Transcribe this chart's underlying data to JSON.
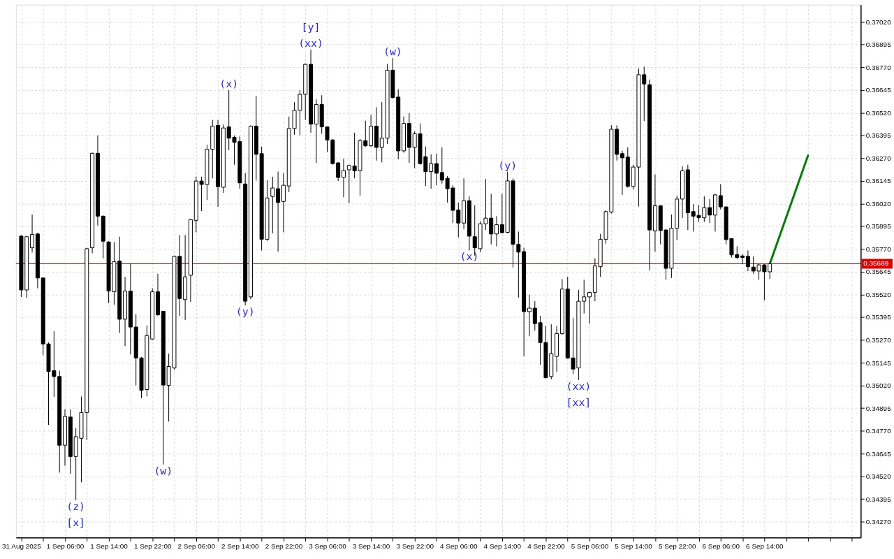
{
  "chart_data": {
    "type": "candlestick",
    "x": [
      "2025-08-31T22:00",
      "2025-08-31T23:00",
      "2025-09-01T00:00",
      "2025-09-01T01:00",
      "2025-09-01T02:00",
      "2025-09-01T03:00",
      "2025-09-01T04:00",
      "2025-09-01T05:00",
      "2025-09-01T06:00",
      "2025-09-01T07:00",
      "2025-09-01T08:00",
      "2025-09-01T09:00",
      "2025-09-01T10:00",
      "2025-09-01T11:00",
      "2025-09-01T12:00",
      "2025-09-01T13:00",
      "2025-09-01T14:00",
      "2025-09-01T15:00",
      "2025-09-01T16:00",
      "2025-09-01T17:00",
      "2025-09-01T18:00",
      "2025-09-01T19:00",
      "2025-09-01T20:00",
      "2025-09-01T21:00",
      "2025-09-01T22:00",
      "2025-09-01T23:00",
      "2025-09-02T00:00",
      "2025-09-02T01:00",
      "2025-09-02T02:00",
      "2025-09-02T03:00",
      "2025-09-02T04:00",
      "2025-09-02T05:00",
      "2025-09-02T06:00",
      "2025-09-02T07:00",
      "2025-09-02T08:00",
      "2025-09-02T09:00",
      "2025-09-02T10:00",
      "2025-09-02T11:00",
      "2025-09-02T12:00",
      "2025-09-02T13:00",
      "2025-09-02T14:00",
      "2025-09-02T15:00",
      "2025-09-02T16:00",
      "2025-09-02T17:00",
      "2025-09-02T18:00",
      "2025-09-02T19:00",
      "2025-09-02T20:00",
      "2025-09-02T21:00",
      "2025-09-02T22:00",
      "2025-09-02T23:00",
      "2025-09-03T00:00",
      "2025-09-03T01:00",
      "2025-09-03T02:00",
      "2025-09-03T03:00",
      "2025-09-03T04:00",
      "2025-09-03T05:00",
      "2025-09-03T06:00",
      "2025-09-03T07:00",
      "2025-09-03T08:00",
      "2025-09-03T09:00",
      "2025-09-03T10:00",
      "2025-09-03T11:00",
      "2025-09-03T12:00",
      "2025-09-03T13:00",
      "2025-09-03T14:00",
      "2025-09-03T15:00",
      "2025-09-03T16:00",
      "2025-09-03T17:00",
      "2025-09-03T18:00",
      "2025-09-03T19:00",
      "2025-09-03T20:00",
      "2025-09-03T21:00",
      "2025-09-03T22:00",
      "2025-09-03T23:00",
      "2025-09-04T00:00",
      "2025-09-04T01:00",
      "2025-09-04T02:00",
      "2025-09-04T03:00",
      "2025-09-04T04:00",
      "2025-09-04T05:00",
      "2025-09-04T06:00",
      "2025-09-04T07:00",
      "2025-09-04T08:00",
      "2025-09-04T09:00",
      "2025-09-04T10:00",
      "2025-09-04T11:00",
      "2025-09-04T12:00",
      "2025-09-04T13:00",
      "2025-09-04T14:00",
      "2025-09-04T15:00",
      "2025-09-04T16:00",
      "2025-09-04T17:00",
      "2025-09-04T18:00",
      "2025-09-04T19:00",
      "2025-09-04T20:00",
      "2025-09-04T21:00",
      "2025-09-04T22:00",
      "2025-09-04T23:00",
      "2025-09-05T00:00",
      "2025-09-05T01:00",
      "2025-09-05T02:00",
      "2025-09-05T03:00",
      "2025-09-05T04:00",
      "2025-09-05T05:00",
      "2025-09-05T06:00",
      "2025-09-05T07:00",
      "2025-09-05T08:00",
      "2025-09-05T09:00",
      "2025-09-05T10:00",
      "2025-09-05T11:00",
      "2025-09-05T12:00",
      "2025-09-05T13:00",
      "2025-09-05T14:00",
      "2025-09-05T15:00",
      "2025-09-05T16:00",
      "2025-09-05T17:00",
      "2025-09-05T18:00",
      "2025-09-05T19:00",
      "2025-09-05T20:00",
      "2025-09-05T21:00",
      "2025-09-05T22:00",
      "2025-09-05T23:00",
      "2025-09-06T00:00",
      "2025-09-06T01:00",
      "2025-09-06T02:00",
      "2025-09-06T03:00",
      "2025-09-06T04:00",
      "2025-09-06T05:00",
      "2025-09-06T06:00",
      "2025-09-06T07:00",
      "2025-09-06T08:00",
      "2025-09-06T09:00",
      "2025-09-06T10:00",
      "2025-09-06T11:00",
      "2025-09-06T12:00",
      "2025-09-06T13:00",
      "2025-09-06T14:00",
      "2025-09-06T15:00"
    ],
    "ohlc": [
      [
        0.35841,
        0.35847,
        0.35507,
        0.35545
      ],
      [
        0.35545,
        0.35841,
        0.35501,
        0.35838
      ],
      [
        0.35777,
        0.3596,
        0.35751,
        0.35851
      ],
      [
        0.35853,
        0.3586,
        0.35554,
        0.35611
      ],
      [
        0.35611,
        0.35611,
        0.35186,
        0.35248
      ],
      [
        0.35248,
        0.35256,
        0.34803,
        0.35097
      ],
      [
        0.35101,
        0.35318,
        0.34957,
        0.35069
      ],
      [
        0.35069,
        0.35101,
        0.3454,
        0.34691
      ],
      [
        0.34691,
        0.34888,
        0.34578,
        0.3485
      ],
      [
        0.34846,
        0.34888,
        0.34534,
        0.34629
      ],
      [
        0.34629,
        0.34786,
        0.34389,
        0.34738
      ],
      [
        0.34729,
        0.34959,
        0.34487,
        0.34871
      ],
      [
        0.34871,
        0.35777,
        0.34719,
        0.35772
      ],
      [
        0.35777,
        0.363,
        0.35747,
        0.36297
      ],
      [
        0.36297,
        0.36395,
        0.359,
        0.35951
      ],
      [
        0.35951,
        0.35955,
        0.35719,
        0.35813
      ],
      [
        0.35809,
        0.35813,
        0.35473,
        0.35539
      ],
      [
        0.35535,
        0.35809,
        0.35464,
        0.357
      ],
      [
        0.35704,
        0.35838,
        0.35309,
        0.35384
      ],
      [
        0.35384,
        0.35617,
        0.35237,
        0.35539
      ],
      [
        0.35539,
        0.35692,
        0.3519,
        0.35341
      ],
      [
        0.35341,
        0.35413,
        0.3502,
        0.35171
      ],
      [
        0.35171,
        0.35177,
        0.3495,
        0.34993
      ],
      [
        0.34997,
        0.3535,
        0.34959,
        0.35294
      ],
      [
        0.35275,
        0.35554,
        0.35271,
        0.35535
      ],
      [
        0.35535,
        0.35634,
        0.35403,
        0.35409
      ],
      [
        0.35428,
        0.35428,
        0.34585,
        0.35022
      ],
      [
        0.3502,
        0.35195,
        0.34821,
        0.35124
      ],
      [
        0.35116,
        0.35734,
        0.35107,
        0.3573
      ],
      [
        0.3573,
        0.35847,
        0.35403,
        0.35498
      ],
      [
        0.35492,
        0.35847,
        0.35379,
        0.35617
      ],
      [
        0.35626,
        0.35936,
        0.35479,
        0.35932
      ],
      [
        0.35928,
        0.36168,
        0.35862,
        0.36144
      ],
      [
        0.36144,
        0.36168,
        0.35979,
        0.36125
      ],
      [
        0.36125,
        0.36344,
        0.3604,
        0.36319
      ],
      [
        0.36319,
        0.3648,
        0.36159,
        0.36446
      ],
      [
        0.3645,
        0.3648,
        0.36002,
        0.36113
      ],
      [
        0.3611,
        0.36455,
        0.36079,
        0.36436
      ],
      [
        0.36442,
        0.36644,
        0.36314,
        0.3638
      ],
      [
        0.36385,
        0.36395,
        0.36234,
        0.36357
      ],
      [
        0.36361,
        0.36389,
        0.36102,
        0.36134
      ],
      [
        0.36128,
        0.36187,
        0.3546,
        0.35483
      ],
      [
        0.35507,
        0.36451,
        0.35494,
        0.36446
      ],
      [
        0.36446,
        0.36612,
        0.36149,
        0.36291
      ],
      [
        0.36295,
        0.36334,
        0.35762,
        0.35824
      ],
      [
        0.35824,
        0.36149,
        0.35815,
        0.36051
      ],
      [
        0.36059,
        0.36168,
        0.35857,
        0.36106
      ],
      [
        0.36102,
        0.36196,
        0.35756,
        0.36026
      ],
      [
        0.36032,
        0.36187,
        0.35862,
        0.36121
      ],
      [
        0.36117,
        0.36499,
        0.36083,
        0.36433
      ],
      [
        0.36433,
        0.36578,
        0.36399,
        0.36533
      ],
      [
        0.36533,
        0.36644,
        0.36395,
        0.36621
      ],
      [
        0.36621,
        0.36791,
        0.3648,
        0.36786
      ],
      [
        0.36786,
        0.36867,
        0.3641,
        0.36457
      ],
      [
        0.36457,
        0.36593,
        0.36244,
        0.36565
      ],
      [
        0.36565,
        0.36616,
        0.36404,
        0.36442
      ],
      [
        0.36442,
        0.36442,
        0.36304,
        0.3637
      ],
      [
        0.3637,
        0.36376,
        0.36234,
        0.3624
      ],
      [
        0.36244,
        0.36249,
        0.36144,
        0.36164
      ],
      [
        0.36164,
        0.36266,
        0.36055,
        0.36202
      ],
      [
        0.36206,
        0.36234,
        0.36023,
        0.3623
      ],
      [
        0.36227,
        0.3641,
        0.36159,
        0.362
      ],
      [
        0.362,
        0.36376,
        0.36064,
        0.36366
      ],
      [
        0.36366,
        0.36476,
        0.36332,
        0.36338
      ],
      [
        0.36338,
        0.36508,
        0.36332,
        0.36446
      ],
      [
        0.36446,
        0.3655,
        0.36257,
        0.36329
      ],
      [
        0.36329,
        0.36578,
        0.36247,
        0.3638
      ],
      [
        0.3638,
        0.36788,
        0.36348,
        0.36754
      ],
      [
        0.36754,
        0.3682,
        0.36599,
        0.36603
      ],
      [
        0.36606,
        0.3665,
        0.36263,
        0.3631
      ],
      [
        0.3631,
        0.36499,
        0.363,
        0.36461
      ],
      [
        0.36461,
        0.36518,
        0.36244,
        0.36329
      ],
      [
        0.36329,
        0.36417,
        0.36215,
        0.36404
      ],
      [
        0.36404,
        0.36461,
        0.36234,
        0.3624
      ],
      [
        0.36278,
        0.36334,
        0.36117,
        0.36196
      ],
      [
        0.36196,
        0.36291,
        0.36102,
        0.3624
      ],
      [
        0.3624,
        0.36295,
        0.36121,
        0.36187
      ],
      [
        0.36191,
        0.36329,
        0.3613,
        0.36149
      ],
      [
        0.36159,
        0.36172,
        0.36026,
        0.36102
      ],
      [
        0.36106,
        0.36121,
        0.35913,
        0.35983
      ],
      [
        0.35985,
        0.36026,
        0.35834,
        0.35913
      ],
      [
        0.35913,
        0.36159,
        0.35879,
        0.36036
      ],
      [
        0.36036,
        0.3606,
        0.35762,
        0.35841
      ],
      [
        0.35838,
        0.36011,
        0.35734,
        0.35777
      ],
      [
        0.35772,
        0.35923,
        0.35753,
        0.35909
      ],
      [
        0.35909,
        0.36155,
        0.35875,
        0.3594
      ],
      [
        0.3594,
        0.36074,
        0.35796,
        0.35853
      ],
      [
        0.35853,
        0.35951,
        0.35785,
        0.35904
      ],
      [
        0.35904,
        0.36074,
        0.35857,
        0.3586
      ],
      [
        0.35862,
        0.36196,
        0.35857,
        0.36145
      ],
      [
        0.36145,
        0.36159,
        0.35668,
        0.35796
      ],
      [
        0.35796,
        0.35866,
        0.35503,
        0.35753
      ],
      [
        0.35756,
        0.35777,
        0.3518,
        0.35426
      ],
      [
        0.35426,
        0.3552,
        0.3529,
        0.35445
      ],
      [
        0.35445,
        0.35483,
        0.35322,
        0.3536
      ],
      [
        0.35365,
        0.35403,
        0.35133,
        0.35256
      ],
      [
        0.35256,
        0.35347,
        0.35058,
        0.35063
      ],
      [
        0.35069,
        0.35356,
        0.35054,
        0.35195
      ],
      [
        0.3518,
        0.35347,
        0.35095,
        0.35305
      ],
      [
        0.35305,
        0.35605,
        0.35299,
        0.3555
      ],
      [
        0.3555,
        0.35617,
        0.35167,
        0.35171
      ],
      [
        0.35171,
        0.3539,
        0.35082,
        0.3511
      ],
      [
        0.35116,
        0.35545,
        0.3505,
        0.35483
      ],
      [
        0.35483,
        0.35601,
        0.35416,
        0.35507
      ],
      [
        0.35507,
        0.35535,
        0.3536,
        0.35532
      ],
      [
        0.35532,
        0.35719,
        0.35483,
        0.35677
      ],
      [
        0.35673,
        0.35853,
        0.35617,
        0.35824
      ],
      [
        0.35824,
        0.35983,
        0.358,
        0.35976
      ],
      [
        0.35974,
        0.36451,
        0.35966,
        0.36429
      ],
      [
        0.36429,
        0.36451,
        0.36257,
        0.36291
      ],
      [
        0.36295,
        0.3631,
        0.36068,
        0.36272
      ],
      [
        0.36276,
        0.36329,
        0.36108,
        0.36115
      ],
      [
        0.36115,
        0.36234,
        0.36098,
        0.36221
      ],
      [
        0.36221,
        0.36763,
        0.36004,
        0.36729
      ],
      [
        0.36729,
        0.36773,
        0.36474,
        0.36678
      ],
      [
        0.36674,
        0.36703,
        0.35653,
        0.35875
      ],
      [
        0.3587,
        0.36181,
        0.35756,
        0.36008
      ],
      [
        0.36008,
        0.36011,
        0.35796,
        0.35872
      ],
      [
        0.35875,
        0.35879,
        0.35601,
        0.35664
      ],
      [
        0.35664,
        0.3596,
        0.35611,
        0.35885
      ],
      [
        0.35885,
        0.36064,
        0.35819,
        0.36045
      ],
      [
        0.36045,
        0.36225,
        0.35941,
        0.362
      ],
      [
        0.36206,
        0.36234,
        0.35875,
        0.3597
      ],
      [
        0.35976,
        0.36017,
        0.35866,
        0.35951
      ],
      [
        0.35955,
        0.36011,
        0.35919,
        0.35943
      ],
      [
        0.35942,
        0.3606,
        0.35919,
        0.35998
      ],
      [
        0.35998,
        0.36045,
        0.35913,
        0.35957
      ],
      [
        0.35957,
        0.36074,
        0.35866,
        0.36068
      ],
      [
        0.36064,
        0.36127,
        0.35989,
        0.36002
      ],
      [
        0.36002,
        0.36002,
        0.35796,
        0.35822
      ],
      [
        0.35828,
        0.35828,
        0.35724,
        0.35738
      ],
      [
        0.35739,
        0.35785,
        0.35715,
        0.35724
      ],
      [
        0.35732,
        0.35743,
        0.35687,
        0.35724
      ],
      [
        0.3573,
        0.35762,
        0.35649,
        0.35673
      ],
      [
        0.35671,
        0.3573,
        0.35634,
        0.35649
      ],
      [
        0.35649,
        0.3569,
        0.35601,
        0.35683
      ],
      [
        0.35683,
        0.35687,
        0.35488,
        0.35645
      ],
      [
        0.35645,
        0.35696,
        0.35607,
        0.35689
      ]
    ],
    "series": [
      {
        "type": "line",
        "color": "#008000",
        "x": [
          "2025-09-06T15:00",
          "2025-09-06T22:00"
        ],
        "values": [
          0.35689,
          0.36285
        ]
      }
    ],
    "ref_lines": [
      {
        "axis": "y",
        "value": 0.35689,
        "label": "0.35689",
        "color": "#e00000"
      }
    ],
    "annotations": [
      {
        "text": "(z)",
        "x": "2025-09-01T08:00",
        "y": 0.34389
      },
      {
        "text": "[x]",
        "x": "2025-09-01T08:00",
        "y": 0.34389
      },
      {
        "text": "(w)",
        "x": "2025-09-02T00:00",
        "y": 0.34585
      },
      {
        "text": "(x)",
        "x": "2025-09-02T12:00",
        "y": 0.36644
      },
      {
        "text": "(y)",
        "x": "2025-09-02T15:00",
        "y": 0.3546
      },
      {
        "text": "(xx)",
        "x": "2025-09-03T03:00",
        "y": 0.36867
      },
      {
        "text": "[y]",
        "x": "2025-09-03T03:00",
        "y": 0.36867
      },
      {
        "text": "(w)",
        "x": "2025-09-03T18:00",
        "y": 0.3682
      },
      {
        "text": "(x)",
        "x": "2025-09-04T08:00",
        "y": 0.35762
      },
      {
        "text": "(y)",
        "x": "2025-09-04T15:00",
        "y": 0.36196
      },
      {
        "text": "(xx)",
        "x": "2025-09-05T04:00",
        "y": 0.3505
      },
      {
        "text": "[xx]",
        "x": "2025-09-05T04:00",
        "y": 0.3505
      }
    ],
    "xlim": [
      "2025-08-31T21:40",
      "2025-09-07T07:00"
    ],
    "xticks": [
      {
        "value": "2025-08-31T22:00",
        "label": "31 Aug 2025"
      },
      {
        "value": "2025-09-01T02:00",
        "label": null
      },
      {
        "value": "2025-09-01T06:00",
        "label": "1 Sep 06:00"
      },
      {
        "value": "2025-09-01T10:00",
        "label": null
      },
      {
        "value": "2025-09-01T14:00",
        "label": "1 Sep 14:00"
      },
      {
        "value": "2025-09-01T18:00",
        "label": null
      },
      {
        "value": "2025-09-01T22:00",
        "label": "1 Sep 22:00"
      },
      {
        "value": "2025-09-02T02:00",
        "label": null
      },
      {
        "value": "2025-09-02T06:00",
        "label": "2 Sep 06:00"
      },
      {
        "value": "2025-09-02T10:00",
        "label": null
      },
      {
        "value": "2025-09-02T14:00",
        "label": "2 Sep 14:00"
      },
      {
        "value": "2025-09-02T18:00",
        "label": null
      },
      {
        "value": "2025-09-02T22:00",
        "label": "2 Sep 22:00"
      },
      {
        "value": "2025-09-03T02:00",
        "label": null
      },
      {
        "value": "2025-09-03T06:00",
        "label": "3 Sep 06:00"
      },
      {
        "value": "2025-09-03T10:00",
        "label": null
      },
      {
        "value": "2025-09-03T14:00",
        "label": "3 Sep 14:00"
      },
      {
        "value": "2025-09-03T18:00",
        "label": null
      },
      {
        "value": "2025-09-03T22:00",
        "label": "3 Sep 22:00"
      },
      {
        "value": "2025-09-04T02:00",
        "label": null
      },
      {
        "value": "2025-09-04T06:00",
        "label": "4 Sep 06:00"
      },
      {
        "value": "2025-09-04T10:00",
        "label": null
      },
      {
        "value": "2025-09-04T14:00",
        "label": "4 Sep 14:00"
      },
      {
        "value": "2025-09-04T18:00",
        "label": null
      },
      {
        "value": "2025-09-04T22:00",
        "label": "4 Sep 22:00"
      },
      {
        "value": "2025-09-05T02:00",
        "label": null
      },
      {
        "value": "2025-09-05T06:00",
        "label": "5 Sep 06:00"
      },
      {
        "value": "2025-09-05T10:00",
        "label": null
      },
      {
        "value": "2025-09-05T14:00",
        "label": "5 Sep 14:00"
      },
      {
        "value": "2025-09-05T18:00",
        "label": null
      },
      {
        "value": "2025-09-05T22:00",
        "label": "5 Sep 22:00"
      },
      {
        "value": "2025-09-06T02:00",
        "label": null
      },
      {
        "value": "2025-09-06T06:00",
        "label": "6 Sep 06:00"
      },
      {
        "value": "2025-09-06T10:00",
        "label": null
      },
      {
        "value": "2025-09-06T14:00",
        "label": "6 Sep 14:00"
      },
      {
        "value": "2025-09-06T18:00",
        "label": null
      },
      {
        "value": "2025-09-06T22:00",
        "label": null
      },
      {
        "value": "2025-09-07T02:00",
        "label": null
      },
      {
        "value": "2025-09-07T06:00",
        "label": null
      }
    ],
    "ylim": [
      0.34183,
      0.37114
    ],
    "yticks": [
      {
        "value": 0.3427,
        "label": "0.34270"
      },
      0.34395,
      {
        "value": 0.3452,
        "label": "0.34520"
      },
      0.34645,
      {
        "value": 0.3477,
        "label": "0.34770"
      },
      0.34895,
      {
        "value": 0.3502,
        "label": "0.35020"
      },
      0.35145,
      {
        "value": 0.3527,
        "label": "0.35270"
      },
      0.35395,
      {
        "value": 0.3552,
        "label": "0.35520"
      },
      0.35645,
      {
        "value": 0.3577,
        "label": "0.35770"
      },
      0.35895,
      {
        "value": 0.3602,
        "label": "0.36020"
      },
      0.36145,
      {
        "value": 0.3627,
        "label": "0.36270"
      },
      0.36395,
      {
        "value": 0.3652,
        "label": "0.36520"
      },
      0.36645,
      {
        "value": 0.3677,
        "label": "0.36770"
      },
      0.36895,
      {
        "value": 0.3702,
        "label": "0.37020"
      }
    ],
    "grid": true
  }
}
